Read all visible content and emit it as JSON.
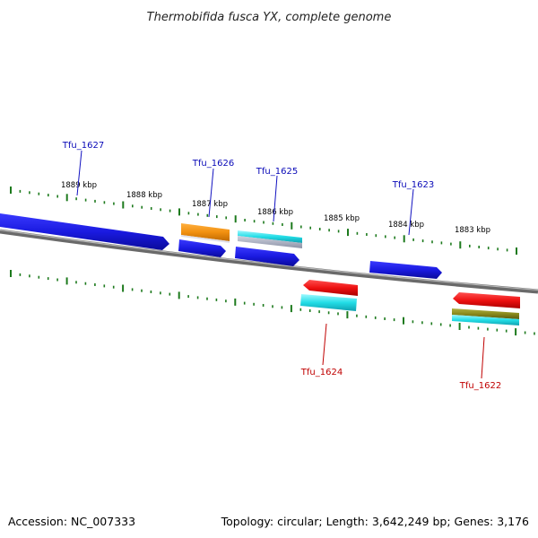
{
  "title": "Thermobifida fusca YX, complete genome",
  "accession": "Accession: NC_007333",
  "topology": "Topology: circular; Length: 3,642,249 bp; Genes: 3,176",
  "kbp_labels": [
    "1889 kbp",
    "1888 kbp",
    "1887 kbp",
    "1886 kbp",
    "1885 kbp",
    "1884 kbp",
    "1883 kbp"
  ],
  "genes": {
    "forward": [
      "Tfu_1627",
      "Tfu_1626",
      "Tfu_1625",
      "Tfu_1623"
    ],
    "reverse": [
      "Tfu_1624",
      "Tfu_1622"
    ]
  },
  "colors": {
    "backbone": "#888888",
    "cds_blue": "#1a1ae0",
    "cds_red": "#ee1111",
    "orange": "#f29010",
    "cyan": "#22dde6",
    "olive": "#8a8a1c",
    "tick_green": "#1d7a1d",
    "fwd_label": "#0a0ab8",
    "rev_label": "#c00000"
  }
}
